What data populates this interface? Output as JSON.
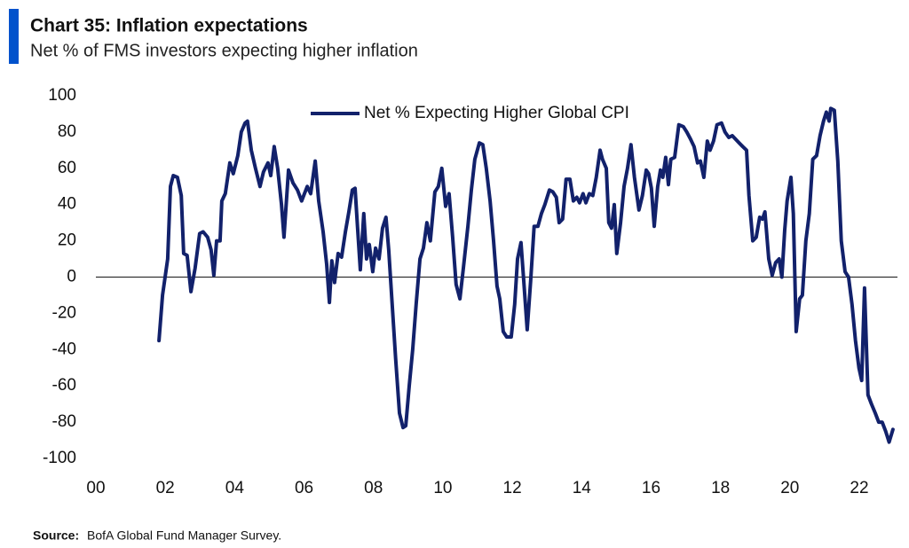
{
  "chart_data": {
    "type": "line",
    "title": "Chart 35: Inflation expectations",
    "subtitle": "Net % of FMS investors expecting higher inflation",
    "source_label": "Source:",
    "source": "BofA Global Fund Manager Survey.",
    "x": [
      2001.82,
      2001.92,
      2002.07,
      2002.15,
      2002.23,
      2002.35,
      2002.46,
      2002.53,
      2002.63,
      2002.74,
      2002.86,
      2002.99,
      2003.09,
      2003.22,
      2003.32,
      2003.4,
      2003.48,
      2003.58,
      2003.63,
      2003.73,
      2003.86,
      2003.96,
      2004.09,
      2004.19,
      2004.3,
      2004.37,
      2004.48,
      2004.6,
      2004.73,
      2004.83,
      2004.96,
      2005.04,
      2005.14,
      2005.24,
      2005.35,
      2005.42,
      2005.55,
      2005.68,
      2005.81,
      2005.93,
      2006.09,
      2006.19,
      2006.32,
      2006.42,
      2006.55,
      2006.65,
      2006.73,
      2006.8,
      2006.88,
      2006.98,
      2007.08,
      2007.19,
      2007.29,
      2007.39,
      2007.47,
      2007.54,
      2007.62,
      2007.72,
      2007.8,
      2007.88,
      2007.98,
      2008.06,
      2008.16,
      2008.26,
      2008.36,
      2008.44,
      2008.54,
      2008.64,
      2008.75,
      2008.85,
      2008.93,
      2009.03,
      2009.13,
      2009.23,
      2009.34,
      2009.44,
      2009.54,
      2009.64,
      2009.77,
      2009.87,
      2009.97,
      2010.08,
      2010.18,
      2010.28,
      2010.38,
      2010.49,
      2010.59,
      2010.72,
      2010.82,
      2010.92,
      2011.05,
      2011.15,
      2011.25,
      2011.36,
      2011.46,
      2011.56,
      2011.64,
      2011.74,
      2011.84,
      2011.97,
      2012.07,
      2012.15,
      2012.25,
      2012.33,
      2012.43,
      2012.53,
      2012.63,
      2012.74,
      2012.84,
      2012.94,
      2013.07,
      2013.17,
      2013.27,
      2013.35,
      2013.45,
      2013.55,
      2013.66,
      2013.76,
      2013.86,
      2013.94,
      2014.04,
      2014.12,
      2014.22,
      2014.32,
      2014.42,
      2014.53,
      2014.6,
      2014.71,
      2014.78,
      2014.86,
      2014.94,
      2015.01,
      2015.12,
      2015.22,
      2015.32,
      2015.42,
      2015.52,
      2015.65,
      2015.75,
      2015.86,
      2015.93,
      2016.01,
      2016.09,
      2016.19,
      2016.27,
      2016.34,
      2016.42,
      2016.5,
      2016.57,
      2016.68,
      2016.8,
      2016.93,
      2017.03,
      2017.14,
      2017.24,
      2017.34,
      2017.42,
      2017.52,
      2017.62,
      2017.7,
      2017.8,
      2017.9,
      2018.03,
      2018.13,
      2018.24,
      2018.34,
      2018.44,
      2018.54,
      2018.64,
      2018.75,
      2018.82,
      2018.93,
      2019.03,
      2019.13,
      2019.21,
      2019.28,
      2019.39,
      2019.49,
      2019.59,
      2019.69,
      2019.77,
      2019.85,
      2019.92,
      2020.03,
      2020.1,
      2020.18,
      2020.28,
      2020.36,
      2020.46,
      2020.56,
      2020.66,
      2020.77,
      2020.87,
      2020.97,
      2021.05,
      2021.13,
      2021.18,
      2021.28,
      2021.38,
      2021.48,
      2021.59,
      2021.69,
      2021.79,
      2021.89,
      2021.99,
      2022.07,
      2022.15,
      2022.25,
      2022.35,
      2022.46,
      2022.56,
      2022.66,
      2022.76,
      2022.86,
      2022.97
    ],
    "series": [
      {
        "name": "Net % Expecting Higher Global CPI",
        "color": "#12216b",
        "values": [
          -35,
          -10,
          10,
          50,
          56,
          55,
          45,
          13,
          12,
          -8,
          5,
          24,
          25,
          22,
          15,
          1,
          20,
          20,
          42,
          46,
          63,
          57,
          67,
          80,
          85,
          86,
          70,
          60,
          50,
          58,
          63,
          56,
          72,
          60,
          40,
          22,
          59,
          52,
          48,
          42,
          50,
          46,
          64,
          42,
          25,
          7,
          -14,
          9,
          -3,
          13,
          11,
          25,
          36,
          48,
          49,
          28,
          4,
          35,
          10,
          18,
          3,
          16,
          10,
          27,
          33,
          15,
          -15,
          -45,
          -75,
          -83,
          -82,
          -60,
          -40,
          -15,
          10,
          16,
          30,
          20,
          47,
          50,
          60,
          39,
          46,
          22,
          -4,
          -12,
          5,
          28,
          48,
          65,
          74,
          73,
          60,
          42,
          20,
          -5,
          -12,
          -30,
          -33,
          -33,
          -15,
          10,
          19,
          -2,
          -29,
          -2,
          28,
          28,
          35,
          40,
          48,
          47,
          44,
          30,
          32,
          54,
          54,
          42,
          44,
          41,
          46,
          41,
          46,
          45,
          55,
          70,
          65,
          60,
          30,
          27,
          40,
          13,
          30,
          50,
          60,
          73,
          55,
          37,
          45,
          59,
          57,
          49,
          28,
          50,
          59,
          55,
          66,
          51,
          65,
          66,
          84,
          83,
          80,
          76,
          72,
          63,
          64,
          55,
          75,
          70,
          75,
          84,
          85,
          80,
          77,
          78,
          76,
          74,
          72,
          70,
          45,
          20,
          22,
          33,
          32,
          36,
          10,
          1,
          8,
          10,
          0,
          26,
          42,
          55,
          35,
          -30,
          -12,
          -10,
          20,
          35,
          65,
          67,
          78,
          86,
          91,
          86,
          93,
          92,
          64,
          20,
          3,
          0,
          -15,
          -35,
          -50,
          -57,
          -6,
          -65,
          -70,
          -75,
          -80,
          -80,
          -85,
          -91,
          -84
        ]
      }
    ],
    "xlim": [
      2000,
      2023.1
    ],
    "xticks": [
      {
        "value": 2000,
        "label": "00"
      },
      {
        "value": 2002,
        "label": "02"
      },
      {
        "value": 2004,
        "label": "04"
      },
      {
        "value": 2006,
        "label": "06"
      },
      {
        "value": 2008,
        "label": "08"
      },
      {
        "value": 2010,
        "label": "10"
      },
      {
        "value": 2012,
        "label": "12"
      },
      {
        "value": 2014,
        "label": "14"
      },
      {
        "value": 2016,
        "label": "16"
      },
      {
        "value": 2018,
        "label": "18"
      },
      {
        "value": 2020,
        "label": "20"
      },
      {
        "value": 2022,
        "label": "22"
      }
    ],
    "ylim": [
      -100,
      100
    ],
    "yticks": [
      -100,
      -80,
      -60,
      -40,
      -20,
      0,
      20,
      40,
      60,
      80,
      100
    ],
    "zero_line": true,
    "legend": "top"
  }
}
